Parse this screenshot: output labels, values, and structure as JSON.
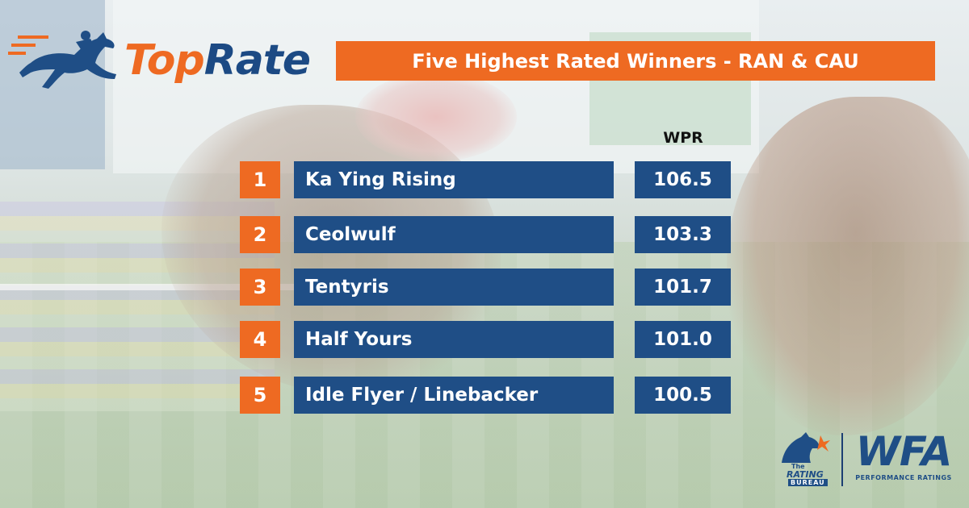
{
  "brand": {
    "logo_word_1": "Top",
    "logo_word_2": "Rate",
    "colors": {
      "orange": "#ee6a22",
      "navy": "#1f4e86"
    }
  },
  "title": "Five Highest Rated Winners - RAN & CAU",
  "column_header": "WPR",
  "rows": [
    {
      "rank": "1",
      "name": "Ka Ying Rising",
      "wpr": "106.5"
    },
    {
      "rank": "2",
      "name": "Ceolwulf",
      "wpr": "103.3"
    },
    {
      "rank": "3",
      "name": "Tentyris",
      "wpr": "101.7"
    },
    {
      "rank": "4",
      "name": "Half Yours",
      "wpr": "101.0"
    },
    {
      "rank": "5",
      "name": "Idle Flyer / Linebacker",
      "wpr": "100.5"
    }
  ],
  "footer": {
    "rating_bureau": {
      "the": "The",
      "rating": "RATING",
      "bureau": "BUREAU"
    },
    "wfa": "WFA",
    "wfa_subtitle": "PERFORMANCE RATINGS"
  }
}
